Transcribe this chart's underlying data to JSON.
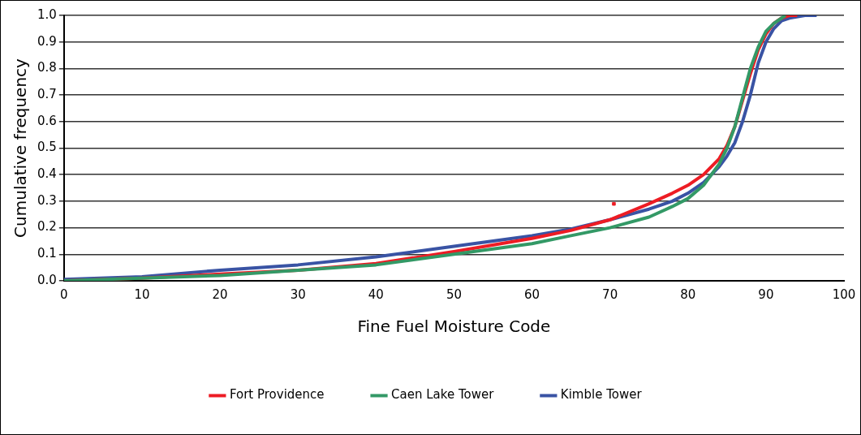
{
  "chart_data": {
    "type": "line",
    "xlabel": "Fine Fuel Moisture Code",
    "ylabel": "Cumulative frequency",
    "xlim": [
      0,
      100
    ],
    "xticks": [
      0,
      10,
      20,
      30,
      40,
      50,
      60,
      70,
      80,
      90,
      100
    ],
    "ylim": [
      0,
      1
    ],
    "yticks": [
      {
        "value": 0,
        "label": "0.0"
      },
      {
        "value": 0.1,
        "label": "0.1"
      },
      {
        "value": 0.2,
        "label": "0.2"
      },
      {
        "value": 0.3,
        "label": "0.3"
      },
      {
        "value": 0.4,
        "label": "0.4"
      },
      {
        "value": 0.5,
        "label": "0.5"
      },
      {
        "value": 0.6,
        "label": "0.6"
      },
      {
        "value": 0.7,
        "label": "0.7"
      },
      {
        "value": 0.8,
        "label": "0.8"
      },
      {
        "value": 0.9,
        "label": "0.9"
      },
      {
        "value": 1,
        "label": "1.0"
      }
    ],
    "grid": "y",
    "legend": "bottom",
    "marker": "none",
    "line_style": "solid",
    "series": [
      {
        "name": "Fort Providence",
        "color": "#ed1c24",
        "x": [
          0,
          10,
          20,
          30,
          40,
          50,
          60,
          65,
          70,
          75,
          78,
          80,
          82,
          84,
          85,
          86,
          87,
          88,
          89,
          90,
          91,
          92,
          93,
          94
        ],
        "values": [
          0,
          0.01,
          0.025,
          0.04,
          0.065,
          0.11,
          0.16,
          0.19,
          0.23,
          0.29,
          0.33,
          0.36,
          0.4,
          0.46,
          0.51,
          0.58,
          0.68,
          0.78,
          0.87,
          0.93,
          0.97,
          0.99,
          1,
          1
        ]
      },
      {
        "name": "Caen Lake Tower",
        "color": "#339966",
        "x": [
          0,
          10,
          20,
          30,
          40,
          50,
          60,
          65,
          70,
          75,
          78,
          80,
          82,
          84,
          85,
          86,
          87,
          88,
          89,
          90,
          91,
          92.5
        ],
        "values": [
          0,
          0.01,
          0.02,
          0.04,
          0.06,
          0.1,
          0.14,
          0.17,
          0.2,
          0.24,
          0.28,
          0.31,
          0.36,
          0.44,
          0.5,
          0.58,
          0.69,
          0.8,
          0.88,
          0.94,
          0.97,
          1
        ]
      },
      {
        "name": "Kimble Tower",
        "color": "#3953a4",
        "x": [
          0,
          10,
          20,
          30,
          40,
          50,
          60,
          65,
          70,
          75,
          78,
          80,
          82,
          84,
          85,
          86,
          87,
          88,
          89,
          90,
          91,
          92,
          93,
          95,
          96.5
        ],
        "values": [
          0.005,
          0.015,
          0.04,
          0.06,
          0.09,
          0.13,
          0.17,
          0.195,
          0.23,
          0.27,
          0.3,
          0.33,
          0.37,
          0.43,
          0.47,
          0.52,
          0.6,
          0.7,
          0.82,
          0.9,
          0.95,
          0.98,
          0.99,
          1,
          1
        ]
      },
      {
        "type": "scatter",
        "marker": "square",
        "color": "#ed1c24",
        "x": [
          70.5
        ],
        "values": [
          0.29
        ]
      }
    ]
  }
}
